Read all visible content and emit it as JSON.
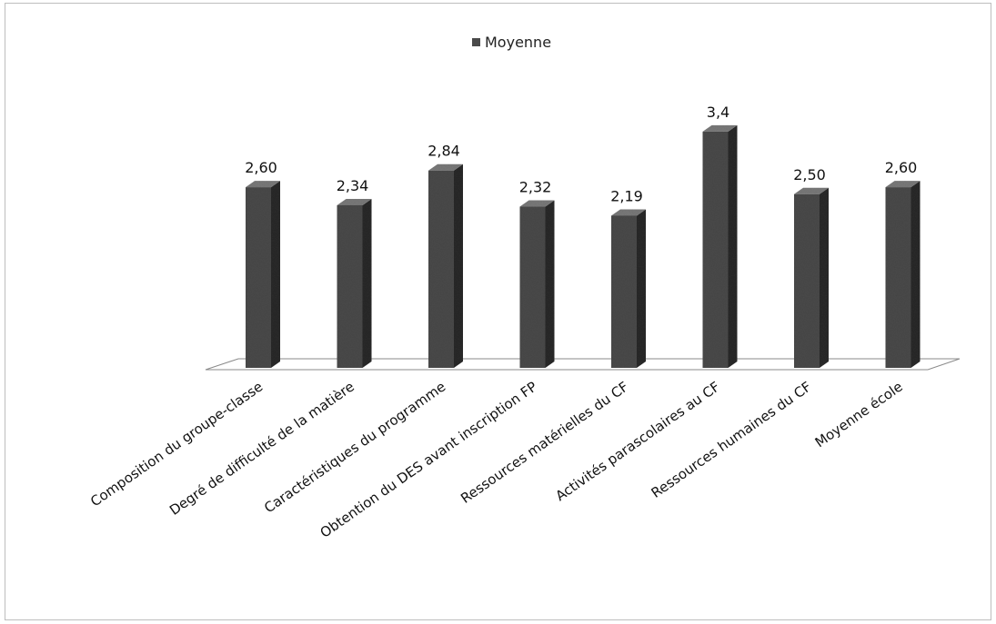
{
  "chart_data": {
    "type": "bar",
    "title": "",
    "xlabel": "",
    "ylabel": "",
    "legend": {
      "label": "Moyenne",
      "position": "top"
    },
    "categories": [
      "Composition du groupe-classe",
      "Degré de difficulté de la matière",
      "Caractéristiques du programme",
      "Obtention du DES avant inscription FP",
      "Ressources matérielles du CF",
      "Activités parascolaires au CF",
      "Ressources humaines du CF",
      "Moyenne école"
    ],
    "series": [
      {
        "name": "Moyenne",
        "values": [
          2.6,
          2.34,
          2.84,
          2.32,
          2.19,
          3.4,
          2.5,
          2.6
        ],
        "labels": [
          "2,60",
          "2,34",
          "2,84",
          "2,32",
          "2,19",
          "3,4",
          "2,50",
          "2,60"
        ]
      }
    ],
    "ylim": [
      0,
      3.4
    ],
    "grid": false,
    "style": "3d-column",
    "colors": {
      "bar_front": "#4a4a4a",
      "bar_side": "#2a2a2a",
      "bar_top": "#7a7a7a",
      "floor": "#ffffff"
    }
  }
}
